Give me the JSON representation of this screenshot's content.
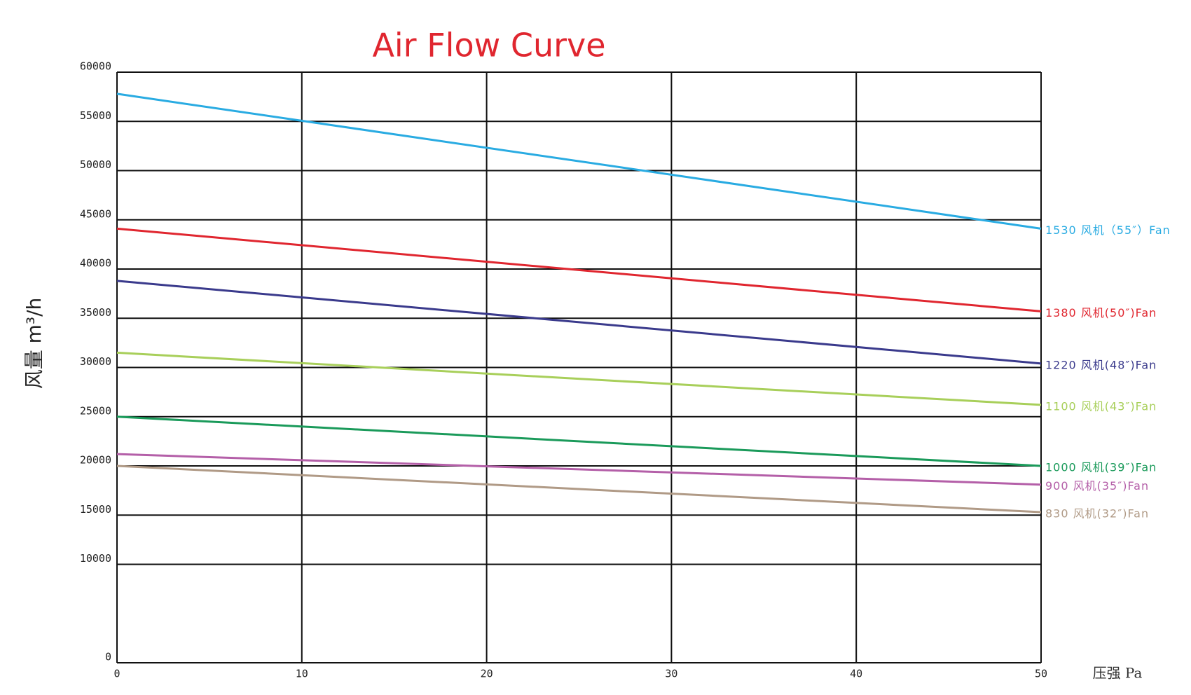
{
  "chart_data": {
    "type": "line",
    "title": "Air Flow Curve",
    "title_color": "#e0262f",
    "y_label": "风量 m³/h",
    "x_label": "压强 Pa",
    "x": [
      0,
      50
    ],
    "xlim": [
      0,
      50
    ],
    "xticks": [
      0,
      10,
      20,
      30,
      40,
      50
    ],
    "ylim": [
      0,
      60000
    ],
    "yticks": [
      0,
      10000,
      15000,
      20000,
      25000,
      30000,
      35000,
      40000,
      45000,
      50000,
      55000,
      60000
    ],
    "grid": true,
    "series": [
      {
        "name": "1530 风机（55″）Fan",
        "color": "#29abe2",
        "values": [
          57800,
          44100
        ]
      },
      {
        "name": "1380 风机(50″)Fan",
        "color": "#e0262f",
        "values": [
          44100,
          35700
        ]
      },
      {
        "name": "1220 风机(48″)Fan",
        "color": "#3a3a8c",
        "values": [
          38800,
          30400
        ]
      },
      {
        "name": "1100 风机(43″)Fan",
        "color": "#a8cf5a",
        "values": [
          31500,
          26200
        ]
      },
      {
        "name": "1000 风机(39″)Fan",
        "color": "#1a9a5a",
        "values": [
          25000,
          20000
        ]
      },
      {
        "name": "900 风机(35″)Fan",
        "color": "#b45fa8",
        "values": [
          21200,
          18100
        ]
      },
      {
        "name": "830 风机(32″)Fan",
        "color": "#b09a86",
        "values": [
          20000,
          15300
        ]
      }
    ]
  }
}
